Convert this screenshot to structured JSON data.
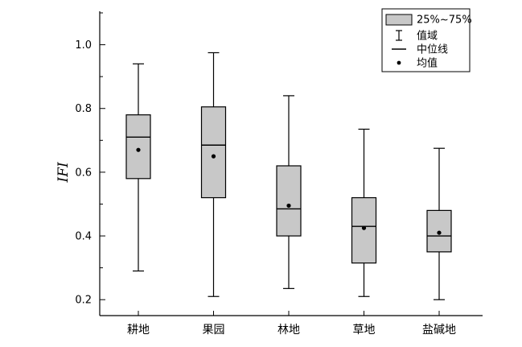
{
  "chart_data": {
    "type": "box",
    "title": "",
    "xlabel": "",
    "ylabel": "IFI",
    "ylim": [
      0.15,
      1.1
    ],
    "yticks": [
      0.2,
      0.4,
      0.6,
      0.8,
      1.0
    ],
    "ytick_labels": [
      "0.2",
      "0.4",
      "0.6",
      "0.8",
      "1.0"
    ],
    "categories": [
      "耕地",
      "果园",
      "林地",
      "草地",
      "盐碱地"
    ],
    "boxes": [
      {
        "min": 0.29,
        "q1": 0.58,
        "median": 0.71,
        "q3": 0.78,
        "max": 0.94,
        "mean": 0.67
      },
      {
        "min": 0.21,
        "q1": 0.52,
        "median": 0.685,
        "q3": 0.805,
        "max": 0.975,
        "mean": 0.65
      },
      {
        "min": 0.235,
        "q1": 0.4,
        "median": 0.485,
        "q3": 0.62,
        "max": 0.84,
        "mean": 0.495
      },
      {
        "min": 0.21,
        "q1": 0.315,
        "median": 0.43,
        "q3": 0.52,
        "max": 0.735,
        "mean": 0.425
      },
      {
        "min": 0.2,
        "q1": 0.35,
        "median": 0.4,
        "q3": 0.48,
        "max": 0.675,
        "mean": 0.41
      }
    ],
    "legend": {
      "placement": "top-right",
      "entries": [
        {
          "key": "box",
          "label": "25%~75%"
        },
        {
          "key": "range",
          "label": "值域"
        },
        {
          "key": "median",
          "label": "中位线"
        },
        {
          "key": "mean",
          "label": "均值"
        }
      ]
    },
    "colors": {
      "box_fill": "#c8c8c8",
      "stroke": "#000000"
    },
    "grid": false
  }
}
